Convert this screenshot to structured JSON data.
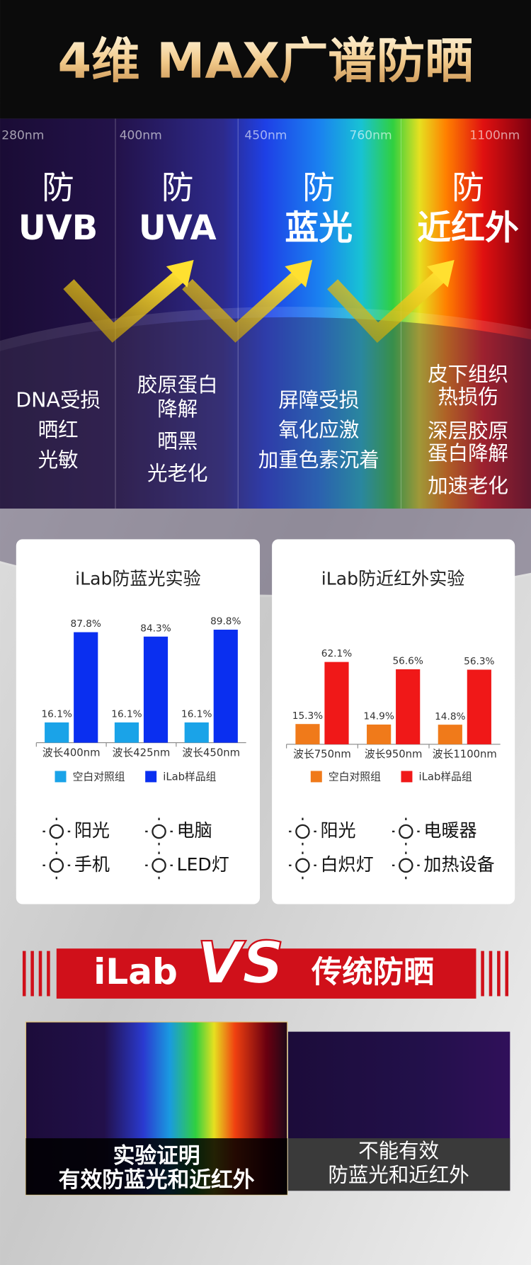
{
  "header": {
    "title": "4维 MAX广谱防晒"
  },
  "spectrum": {
    "wavelengths": [
      "280nm",
      "400nm",
      "450nm",
      "760nm",
      "1100nm"
    ],
    "bands": [
      {
        "prefix": "防",
        "name": "UVB",
        "effects": [
          "DNA受损",
          "晒红",
          "光敏"
        ]
      },
      {
        "prefix": "防",
        "name": "UVA",
        "effects": [
          "胶原蛋白",
          "降解",
          "晒黑",
          "光老化"
        ]
      },
      {
        "prefix": "防",
        "name": "蓝光",
        "effects": [
          "屏障受损",
          "氧化应激",
          "加重色素沉着"
        ]
      },
      {
        "prefix": "防",
        "name": "近红外",
        "effects": [
          "皮下组织",
          "热损伤",
          "深层胶原",
          "蛋白降解",
          "加速老化"
        ]
      }
    ]
  },
  "chart_data": [
    {
      "type": "bar",
      "title": "iLab防蓝光实验",
      "categories": [
        "波长400nm",
        "波长425nm",
        "波长450nm"
      ],
      "series": [
        {
          "name": "空白对照组",
          "color": "#1aa3e8",
          "values": [
            16.1,
            16.1,
            16.1
          ],
          "value_labels": [
            "16.1%",
            "16.1%",
            "16.1%"
          ]
        },
        {
          "name": "iLab样品组",
          "color": "#0a2ff0",
          "values": [
            87.8,
            84.3,
            89.8
          ],
          "value_labels": [
            "87.8%",
            "84.3%",
            "89.8%"
          ]
        }
      ]
    },
    {
      "type": "bar",
      "title": "iLab防近红外实验",
      "categories": [
        "波长750nm",
        "波长950nm",
        "波长1100nm"
      ],
      "series": [
        {
          "name": "空白对照组",
          "color": "#f07a1a",
          "values": [
            15.3,
            14.9,
            14.8
          ],
          "value_labels": [
            "15.3%",
            "14.9%",
            "14.8%"
          ]
        },
        {
          "name": "iLab样品组",
          "color": "#f01818",
          "values": [
            62.1,
            56.6,
            56.3
          ],
          "value_labels": [
            "62.1%",
            "56.6%",
            "56.3%"
          ]
        }
      ]
    }
  ],
  "scenarios": [
    [
      "阳光",
      "电脑",
      "手机",
      "LED灯"
    ],
    [
      "阳光",
      "电暖器",
      "白炽灯",
      "加热设备"
    ]
  ],
  "comparison": {
    "left": "iLab",
    "vs": "VS",
    "right": "传统防晒",
    "ilab_caption": [
      "实验证明",
      "有效防蓝光和近红外"
    ],
    "traditional_caption": [
      "不能有效",
      "防蓝光和近红外"
    ]
  }
}
